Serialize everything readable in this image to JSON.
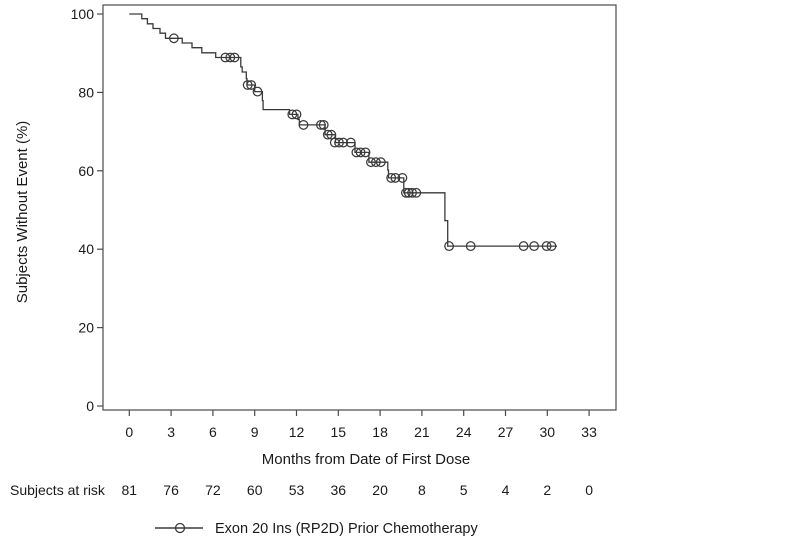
{
  "chart_data": {
    "type": "line",
    "subtype": "kaplan-meier-step",
    "title": "",
    "xlabel": "Months from Date of First Dose",
    "ylabel": "Subjects Without Event (%)",
    "xlim": [
      0,
      33
    ],
    "ylim": [
      0,
      100
    ],
    "x_ticks": [
      0,
      3,
      6,
      9,
      12,
      15,
      18,
      21,
      24,
      27,
      30,
      33
    ],
    "y_ticks": [
      0,
      20,
      40,
      60,
      80,
      100
    ],
    "grid": false,
    "legend_position": "bottom",
    "colors": {
      "curve": "#3a3a3a",
      "axis": "#4a4a4a",
      "text": "#1a1a1a"
    },
    "series": [
      {
        "name": "Exon 20 Ins (RP2D) Prior Chemotherapy",
        "color": "#3a3a3a",
        "marker": "circle",
        "step_points": [
          [
            0,
            100
          ],
          [
            0.9,
            98.8
          ],
          [
            1.3,
            97.5
          ],
          [
            1.7,
            96.3
          ],
          [
            2.2,
            95.1
          ],
          [
            2.6,
            93.8
          ],
          [
            3.8,
            92.6
          ],
          [
            4.5,
            91.4
          ],
          [
            5.2,
            90.1
          ],
          [
            6.2,
            88.9
          ],
          [
            8.0,
            86.5
          ],
          [
            8.1,
            85.2
          ],
          [
            8.4,
            83.5
          ],
          [
            8.45,
            81.9
          ],
          [
            9.0,
            80.2
          ],
          [
            9.55,
            77.9
          ],
          [
            9.6,
            75.6
          ],
          [
            11.5,
            74.4
          ],
          [
            12.1,
            73.1
          ],
          [
            12.2,
            71.7
          ],
          [
            14.05,
            69.2
          ],
          [
            14.8,
            67.2
          ],
          [
            16.2,
            64.7
          ],
          [
            17.2,
            62.2
          ],
          [
            18.55,
            60.2
          ],
          [
            18.6,
            58.2
          ],
          [
            19.7,
            54.4
          ],
          [
            22.65,
            47.3
          ],
          [
            22.85,
            40.8
          ]
        ],
        "end_time": 30.7,
        "censor_marks": [
          [
            3.2,
            93.8
          ],
          [
            6.9,
            88.9
          ],
          [
            7.25,
            88.9
          ],
          [
            7.55,
            88.9
          ],
          [
            8.5,
            81.9
          ],
          [
            8.75,
            81.9
          ],
          [
            9.2,
            80.2
          ],
          [
            11.7,
            74.4
          ],
          [
            12.0,
            74.4
          ],
          [
            12.5,
            71.7
          ],
          [
            13.75,
            71.7
          ],
          [
            13.95,
            71.7
          ],
          [
            14.25,
            69.2
          ],
          [
            14.5,
            69.2
          ],
          [
            14.75,
            67.2
          ],
          [
            15.05,
            67.2
          ],
          [
            15.35,
            67.2
          ],
          [
            15.9,
            67.2
          ],
          [
            16.3,
            64.7
          ],
          [
            16.6,
            64.7
          ],
          [
            16.95,
            64.7
          ],
          [
            17.35,
            62.2
          ],
          [
            17.7,
            62.2
          ],
          [
            18.05,
            62.2
          ],
          [
            18.8,
            58.2
          ],
          [
            19.1,
            58.2
          ],
          [
            19.6,
            58.2
          ],
          [
            19.85,
            54.4
          ],
          [
            20.05,
            54.4
          ],
          [
            20.3,
            54.4
          ],
          [
            20.6,
            54.4
          ],
          [
            22.95,
            40.8
          ],
          [
            24.5,
            40.8
          ],
          [
            28.3,
            40.8
          ],
          [
            29.05,
            40.8
          ],
          [
            29.95,
            40.8
          ],
          [
            30.3,
            40.8
          ]
        ]
      }
    ],
    "at_risk": {
      "label": "Subjects at risk",
      "times": [
        0,
        3,
        6,
        9,
        12,
        15,
        18,
        21,
        24,
        27,
        30,
        33
      ],
      "counts": [
        81,
        76,
        72,
        60,
        53,
        36,
        20,
        8,
        5,
        4,
        2,
        0
      ]
    }
  }
}
